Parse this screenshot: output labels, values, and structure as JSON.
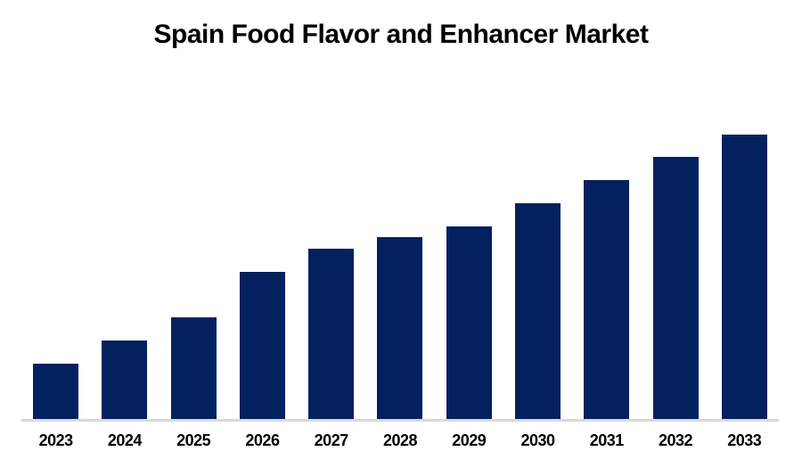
{
  "title": "Spain Food Flavor and Enhancer Market",
  "colors": {
    "bar": "#02215E",
    "axis_line": "#D9D9D9",
    "title_text": "#000000",
    "tick_text": "#000000",
    "background": "#FFFFFF"
  },
  "chart_data": {
    "type": "bar",
    "title": "Spain Food Flavor and Enhancer Market",
    "categories": [
      "2023",
      "2024",
      "2025",
      "2026",
      "2027",
      "2028",
      "2029",
      "2030",
      "2031",
      "2032",
      "2033"
    ],
    "values": [
      19.4,
      27.6,
      35.7,
      51.7,
      59.9,
      63.9,
      67.7,
      75.9,
      84.0,
      92.2,
      100.0
    ],
    "units_note": "No y-axis, gridlines, or data labels are shown in the image; values are relative bar heights normalized to 2033 = 100",
    "xlabel": "",
    "ylabel": "",
    "ylim": [
      0,
      100
    ],
    "grid": false,
    "legend": false,
    "bar_color": "#02215E"
  }
}
